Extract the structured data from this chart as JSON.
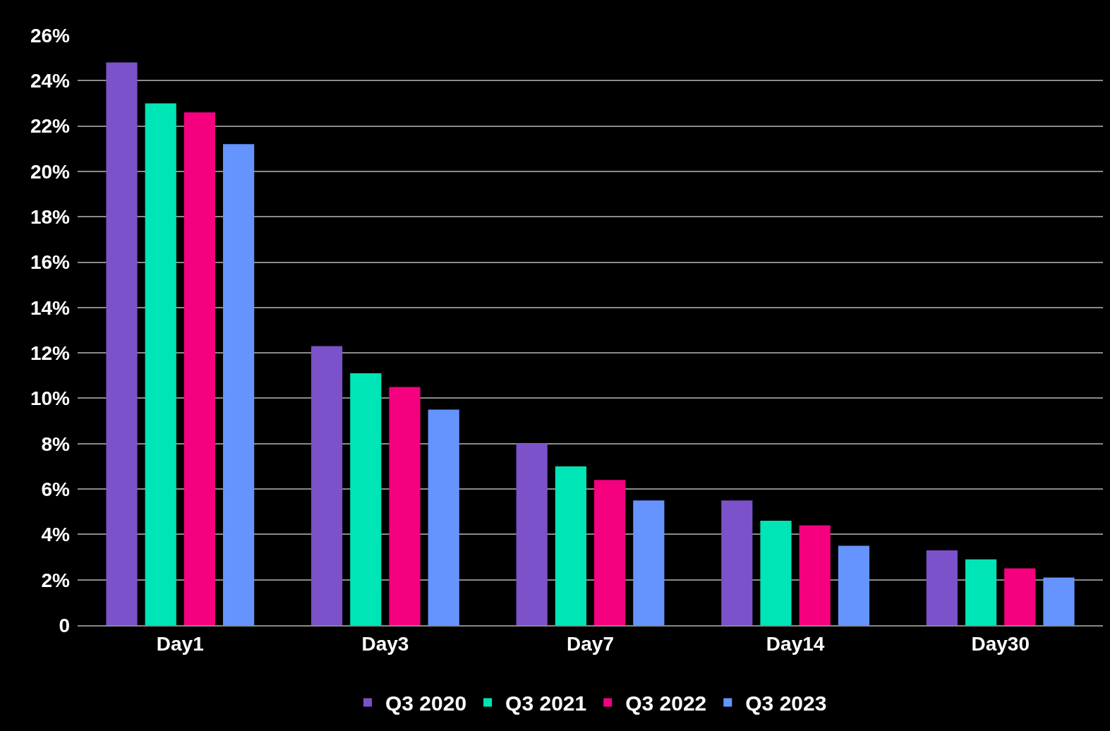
{
  "chart_data": {
    "type": "bar",
    "categories": [
      "Day1",
      "Day3",
      "Day7",
      "Day14",
      "Day30"
    ],
    "series": [
      {
        "name": "Q3 2020",
        "color": "#7b52c9",
        "values": [
          24.8,
          12.3,
          8.0,
          5.5,
          3.3
        ]
      },
      {
        "name": "Q3 2021",
        "color": "#00e5b5",
        "values": [
          23.0,
          11.1,
          7.0,
          4.6,
          2.9
        ]
      },
      {
        "name": "Q3 2022",
        "color": "#f5007f",
        "values": [
          22.6,
          10.5,
          6.4,
          4.4,
          2.5
        ]
      },
      {
        "name": "Q3 2023",
        "color": "#6694ff",
        "values": [
          21.2,
          9.5,
          5.5,
          3.5,
          2.1
        ]
      }
    ],
    "ylim": [
      0,
      26
    ],
    "yticks": [
      {
        "value": 0,
        "label": "0"
      },
      {
        "value": 2,
        "label": "2%"
      },
      {
        "value": 4,
        "label": "4%"
      },
      {
        "value": 6,
        "label": "6%"
      },
      {
        "value": 8,
        "label": "8%"
      },
      {
        "value": 10,
        "label": "10%"
      },
      {
        "value": 12,
        "label": "12%"
      },
      {
        "value": 14,
        "label": "14%"
      },
      {
        "value": 16,
        "label": "16%"
      },
      {
        "value": 18,
        "label": "18%"
      },
      {
        "value": 20,
        "label": "20%"
      },
      {
        "value": 22,
        "label": "22%"
      },
      {
        "value": 24,
        "label": "24%"
      },
      {
        "value": 26,
        "label": "26%"
      }
    ],
    "grid": "y",
    "legend": "bottom"
  }
}
